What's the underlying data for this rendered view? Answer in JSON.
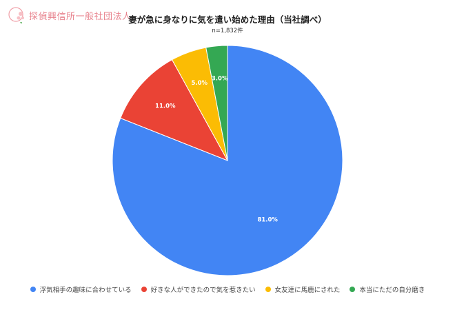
{
  "logo": {
    "text": "探偵興信所一般社団法人"
  },
  "chart_data": {
    "type": "pie",
    "title": "妻が急に身なりに気を遣い始めた理由（当社調べ）",
    "subtitle": "n=1,832件",
    "categories": [
      "浮気相手の趣味に合わせている",
      "好きな人ができたので気を惹きたい",
      "女友達に馬鹿にされた",
      "本当にただの自分磨き"
    ],
    "values": [
      81.0,
      11.0,
      5.0,
      3.0
    ],
    "labels": [
      "81.0%",
      "11.0%",
      "5.0%",
      "3.0%"
    ],
    "colors": [
      "#4285f4",
      "#ea4335",
      "#fbbc04",
      "#34a853"
    ],
    "legend_position": "bottom",
    "start_angle": "12 o'clock, clockwise"
  }
}
